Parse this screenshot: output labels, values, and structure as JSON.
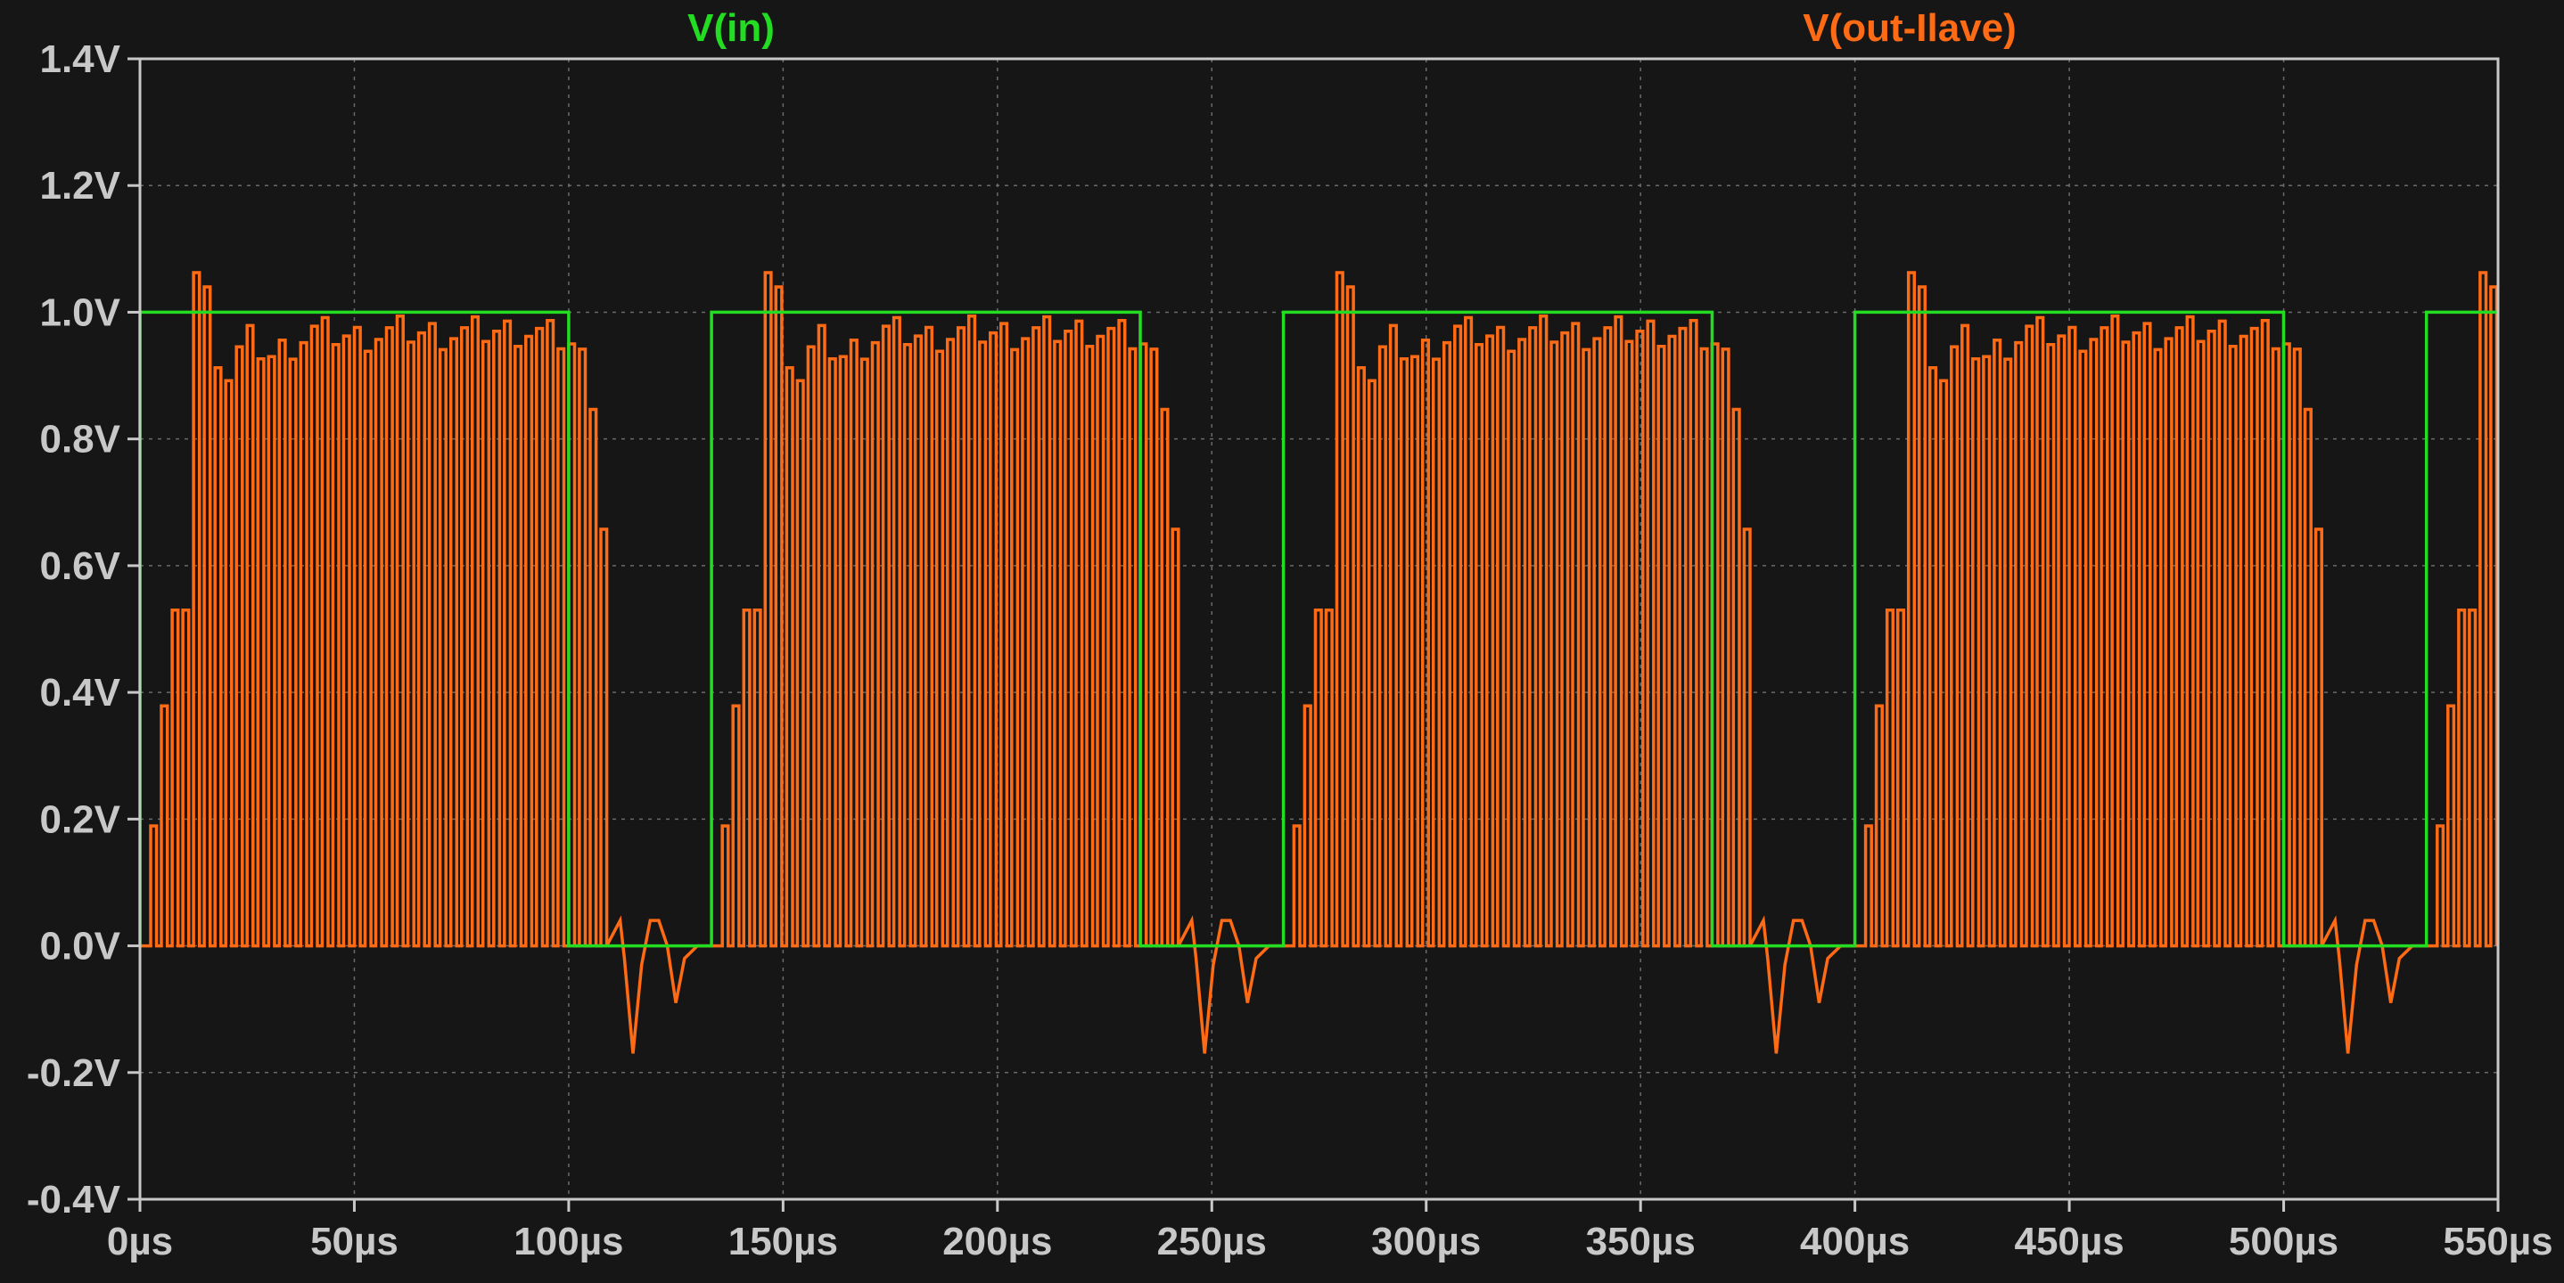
{
  "chart_data": {
    "type": "line",
    "title": "",
    "xlabel": "",
    "ylabel": "",
    "xlim": [
      0,
      550
    ],
    "ylim": [
      -0.4,
      1.4
    ],
    "grid": true,
    "legend_placement": "top",
    "x_ticks": [
      {
        "v": 0,
        "label": "0µs"
      },
      {
        "v": 50,
        "label": "50µs"
      },
      {
        "v": 100,
        "label": "100µs"
      },
      {
        "v": 150,
        "label": "150µs"
      },
      {
        "v": 200,
        "label": "200µs"
      },
      {
        "v": 250,
        "label": "250µs"
      },
      {
        "v": 300,
        "label": "300µs"
      },
      {
        "v": 350,
        "label": "350µs"
      },
      {
        "v": 400,
        "label": "400µs"
      },
      {
        "v": 450,
        "label": "450µs"
      },
      {
        "v": 500,
        "label": "500µs"
      },
      {
        "v": 550,
        "label": "550µs"
      }
    ],
    "y_ticks": [
      {
        "v": 1.4,
        "label": "1.4V"
      },
      {
        "v": 1.2,
        "label": "1.2V"
      },
      {
        "v": 1.0,
        "label": "1.0V"
      },
      {
        "v": 0.8,
        "label": "0.8V"
      },
      {
        "v": 0.6,
        "label": "0.6V"
      },
      {
        "v": 0.4,
        "label": "0.4V"
      },
      {
        "v": 0.2,
        "label": "0.2V"
      },
      {
        "v": 0.0,
        "label": "0.0V"
      },
      {
        "v": -0.2,
        "label": "-0.2V"
      },
      {
        "v": -0.4,
        "label": "-0.4V"
      }
    ],
    "colors": {
      "background": "#161616",
      "axis": "#c8c8c8",
      "grid": "#6a6a6a",
      "vin": "#22dd22",
      "vout": "#ff6a14"
    },
    "series": [
      {
        "name": "V(in)",
        "color": "#22dd22",
        "points": [
          [
            0,
            0
          ],
          [
            0,
            1
          ],
          [
            100,
            1
          ],
          [
            100,
            0
          ],
          [
            133.3,
            0
          ],
          [
            133.3,
            1
          ],
          [
            233.3,
            1
          ],
          [
            233.3,
            0
          ],
          [
            266.7,
            0
          ],
          [
            266.7,
            1
          ],
          [
            366.7,
            1
          ],
          [
            366.7,
            0
          ],
          [
            400,
            0
          ],
          [
            400,
            1
          ],
          [
            500,
            1
          ],
          [
            500,
            0
          ],
          [
            533.3,
            0
          ],
          [
            533.3,
            1
          ],
          [
            550,
            1
          ]
        ]
      },
      {
        "name": "V(out-Ilave)",
        "color": "#ff6a14",
        "period_us": 133.33,
        "pulse_period_us": 2.5,
        "pulse_duty": 0.55,
        "burst_envelope": [
          [
            0,
            0.0
          ],
          [
            7,
            0.53
          ],
          [
            10,
            0.53
          ],
          [
            12,
            1.05
          ],
          [
            14,
            1.1
          ],
          [
            16,
            0.98
          ],
          [
            18,
            0.89
          ],
          [
            20,
            0.9
          ],
          [
            24,
            0.96
          ],
          [
            30,
            0.93
          ],
          [
            40,
            0.97
          ],
          [
            50,
            0.96
          ],
          [
            60,
            0.97
          ],
          [
            70,
            0.965
          ],
          [
            80,
            0.97
          ],
          [
            90,
            0.97
          ],
          [
            97,
            0.96
          ],
          [
            103,
            0.94
          ],
          [
            106,
            0.8
          ],
          [
            108,
            0.61
          ],
          [
            110,
            0.53
          ]
        ],
        "ringing": [
          [
            112,
            0.04
          ],
          [
            113,
            -0.02
          ],
          [
            115,
            -0.17
          ],
          [
            117,
            -0.03
          ],
          [
            119,
            0.04
          ],
          [
            121,
            0.04
          ],
          [
            123,
            0.0
          ],
          [
            125,
            -0.09
          ],
          [
            127,
            -0.02
          ],
          [
            130,
            0.0
          ]
        ]
      }
    ]
  }
}
